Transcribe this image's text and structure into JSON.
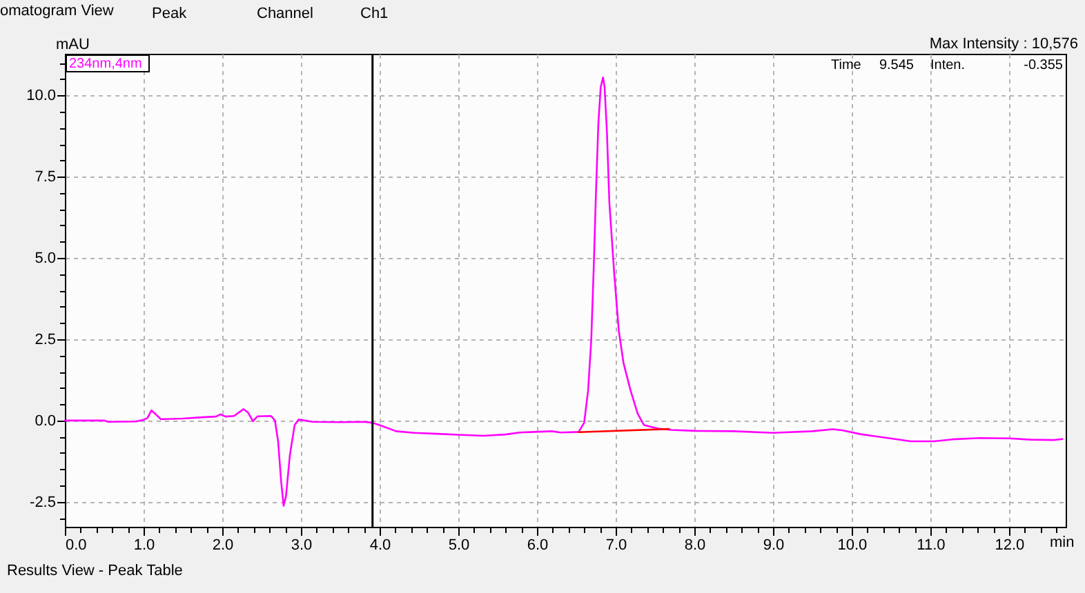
{
  "chart_data": {
    "type": "line",
    "title": "omatogram View",
    "xlabel": "min",
    "ylabel": "mAU",
    "annotations": [
      "Peak",
      "Channel",
      "Ch1",
      "Max Intensity : 10,576",
      "Time",
      "9.545",
      "Inten.",
      "-0.355",
      "Results View - Peak Table"
    ],
    "series": [
      {
        "name": "234nm,4nm",
        "color": "#ff00ff",
        "x": [
          0.0,
          0.5,
          0.55,
          0.9,
          1.0,
          1.05,
          1.1,
          1.16,
          1.22,
          1.5,
          1.75,
          1.92,
          1.98,
          2.04,
          2.15,
          2.27,
          2.33,
          2.39,
          2.45,
          2.62,
          2.67,
          2.71,
          2.75,
          2.78,
          2.81,
          2.86,
          2.92,
          2.97,
          3.02,
          3.15,
          3.5,
          3.8,
          3.91,
          4.03,
          4.21,
          4.44,
          4.73,
          5.0,
          5.32,
          5.6,
          5.78,
          6.19,
          6.3,
          6.53,
          6.6,
          6.65,
          6.69,
          6.72,
          6.75,
          6.78,
          6.81,
          6.84,
          6.86,
          6.89,
          6.92,
          6.98,
          7.04,
          7.1,
          7.19,
          7.28,
          7.36,
          7.54,
          7.71,
          8.01,
          8.5,
          9.0,
          9.5,
          9.76,
          9.88,
          10.11,
          10.46,
          10.75,
          11.05,
          11.28,
          11.63,
          12.0,
          12.28,
          12.57,
          12.68
        ],
        "values": [
          0.0,
          0.0,
          -0.04,
          -0.03,
          0.02,
          0.08,
          0.31,
          0.18,
          0.04,
          0.06,
          0.1,
          0.12,
          0.19,
          0.12,
          0.14,
          0.35,
          0.24,
          -0.02,
          0.13,
          0.14,
          0.0,
          -0.64,
          -1.91,
          -2.62,
          -2.33,
          -1.06,
          -0.14,
          0.03,
          0.01,
          -0.04,
          -0.05,
          -0.04,
          -0.07,
          -0.17,
          -0.33,
          -0.38,
          -0.41,
          -0.44,
          -0.47,
          -0.43,
          -0.37,
          -0.33,
          -0.37,
          -0.35,
          -0.07,
          0.92,
          2.47,
          4.59,
          7.0,
          9.12,
          10.25,
          10.55,
          10.25,
          8.84,
          6.72,
          4.59,
          2.76,
          1.77,
          0.92,
          0.21,
          -0.14,
          -0.25,
          -0.29,
          -0.32,
          -0.33,
          -0.38,
          -0.33,
          -0.27,
          -0.3,
          -0.42,
          -0.54,
          -0.64,
          -0.64,
          -0.58,
          -0.54,
          -0.55,
          -0.59,
          -0.6,
          -0.57
        ]
      },
      {
        "type": "line",
        "color": "#ff0000",
        "x": [
          6.53,
          7.68
        ],
        "values": [
          -0.36,
          -0.26
        ]
      }
    ],
    "xlim": [
      0,
      12.72
    ],
    "ylim": [
      -3.27,
      11.28
    ],
    "xticks": [
      {
        "value": 0,
        "label": "0.0"
      },
      {
        "value": 0.2,
        "label": null
      },
      {
        "value": 0.4,
        "label": null
      },
      {
        "value": 0.6,
        "label": null
      },
      {
        "value": 0.8,
        "label": null
      },
      {
        "value": 1,
        "label": "1.0"
      },
      {
        "value": 1.2,
        "label": null
      },
      {
        "value": 1.4,
        "label": null
      },
      {
        "value": 1.6,
        "label": null
      },
      {
        "value": 1.8,
        "label": null
      },
      {
        "value": 2,
        "label": "2.0"
      },
      {
        "value": 2.2,
        "label": null
      },
      {
        "value": 2.4,
        "label": null
      },
      {
        "value": 2.6,
        "label": null
      },
      {
        "value": 2.8,
        "label": null
      },
      {
        "value": 3,
        "label": "3.0"
      },
      {
        "value": 3.2,
        "label": null
      },
      {
        "value": 3.4,
        "label": null
      },
      {
        "value": 3.6,
        "label": null
      },
      {
        "value": 3.8,
        "label": null
      },
      {
        "value": 4,
        "label": "4.0"
      },
      {
        "value": 4.2,
        "label": null
      },
      {
        "value": 4.4,
        "label": null
      },
      {
        "value": 4.6,
        "label": null
      },
      {
        "value": 4.8,
        "label": null
      },
      {
        "value": 5,
        "label": "5.0"
      },
      {
        "value": 5.2,
        "label": null
      },
      {
        "value": 5.4,
        "label": null
      },
      {
        "value": 5.6,
        "label": null
      },
      {
        "value": 5.8,
        "label": null
      },
      {
        "value": 6,
        "label": "6.0"
      },
      {
        "value": 6.2,
        "label": null
      },
      {
        "value": 6.4,
        "label": null
      },
      {
        "value": 6.6,
        "label": null
      },
      {
        "value": 6.8,
        "label": null
      },
      {
        "value": 7,
        "label": "7.0"
      },
      {
        "value": 7.2,
        "label": null
      },
      {
        "value": 7.4,
        "label": null
      },
      {
        "value": 7.6,
        "label": null
      },
      {
        "value": 7.8,
        "label": null
      },
      {
        "value": 8,
        "label": "8.0"
      },
      {
        "value": 8.2,
        "label": null
      },
      {
        "value": 8.4,
        "label": null
      },
      {
        "value": 8.6,
        "label": null
      },
      {
        "value": 8.8,
        "label": null
      },
      {
        "value": 9,
        "label": "9.0"
      },
      {
        "value": 9.2,
        "label": null
      },
      {
        "value": 9.4,
        "label": null
      },
      {
        "value": 9.6,
        "label": null
      },
      {
        "value": 9.8,
        "label": null
      },
      {
        "value": 10,
        "label": "10.0"
      },
      {
        "value": 10.2,
        "label": null
      },
      {
        "value": 10.4,
        "label": null
      },
      {
        "value": 10.6,
        "label": null
      },
      {
        "value": 10.8,
        "label": null
      },
      {
        "value": 11,
        "label": "11.0"
      },
      {
        "value": 11.2,
        "label": null
      },
      {
        "value": 11.4,
        "label": null
      },
      {
        "value": 11.6,
        "label": null
      },
      {
        "value": 11.8,
        "label": null
      },
      {
        "value": 12,
        "label": "12.0"
      },
      {
        "value": 12.2,
        "label": null
      },
      {
        "value": 12.4,
        "label": null
      },
      {
        "value": 12.6,
        "label": null
      }
    ],
    "yticks": [
      {
        "value": -3,
        "label": null
      },
      {
        "value": -2.5,
        "label": "-2.5"
      },
      {
        "value": -2,
        "label": null
      },
      {
        "value": -1.5,
        "label": null
      },
      {
        "value": -1,
        "label": null
      },
      {
        "value": -0.5,
        "label": null
      },
      {
        "value": 0,
        "label": "0.0"
      },
      {
        "value": 0.5,
        "label": null
      },
      {
        "value": 1,
        "label": null
      },
      {
        "value": 1.5,
        "label": null
      },
      {
        "value": 2,
        "label": null
      },
      {
        "value": 2.5,
        "label": "2.5"
      },
      {
        "value": 3,
        "label": null
      },
      {
        "value": 3.5,
        "label": null
      },
      {
        "value": 4,
        "label": null
      },
      {
        "value": 4.5,
        "label": null
      },
      {
        "value": 5,
        "label": "5.0"
      },
      {
        "value": 5.5,
        "label": null
      },
      {
        "value": 6,
        "label": null
      },
      {
        "value": 6.5,
        "label": null
      },
      {
        "value": 7,
        "label": null
      },
      {
        "value": 7.5,
        "label": "7.5"
      },
      {
        "value": 8,
        "label": null
      },
      {
        "value": 8.5,
        "label": null
      },
      {
        "value": 9,
        "label": null
      },
      {
        "value": 9.5,
        "label": null
      },
      {
        "value": 10,
        "label": "10.0"
      },
      {
        "value": 10.5,
        "label": null
      },
      {
        "value": 11,
        "label": null
      }
    ],
    "grid": true,
    "legend": "top left",
    "ref_lines": [
      {
        "axis": "x",
        "value": 3.91,
        "color": "#000000"
      }
    ]
  }
}
